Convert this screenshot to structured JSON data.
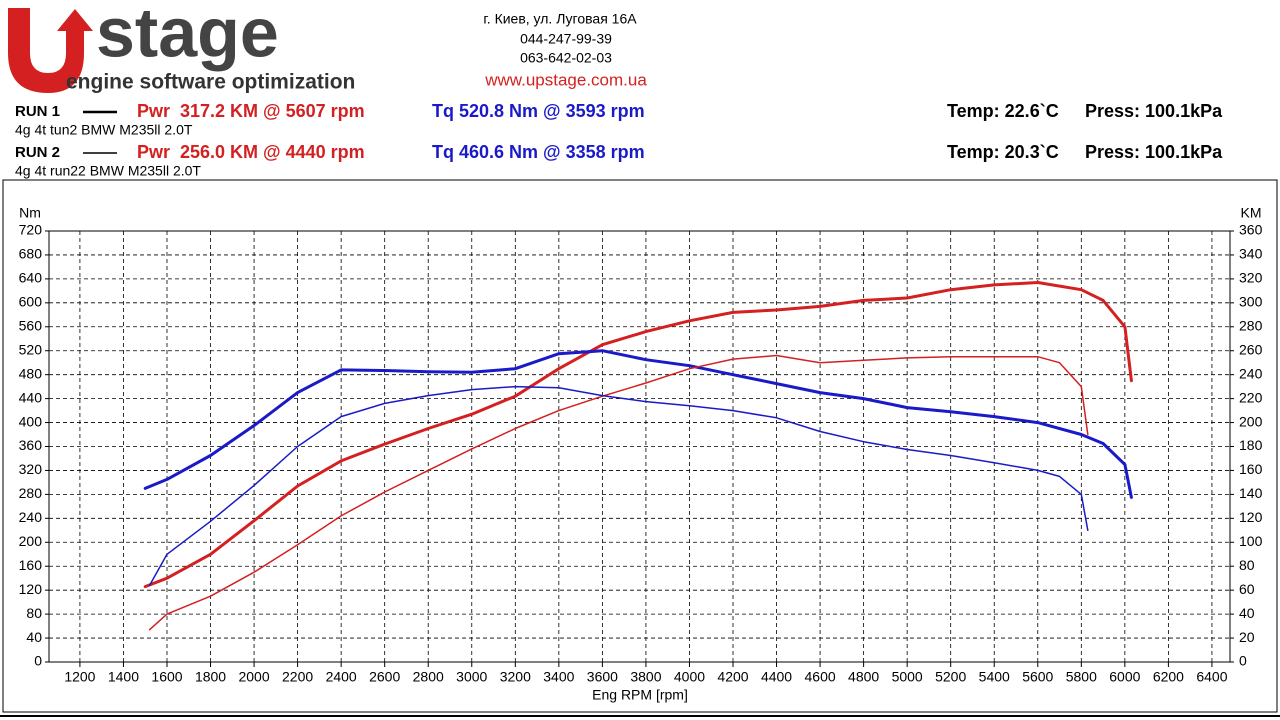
{
  "header": {
    "logo_word": "stage",
    "logo_tagline": "engine software optimization",
    "address": "г. Киев, ул. Луговая 16А",
    "phone1": "044-247-99-39",
    "phone2": "063-642-02-03",
    "website": "www.upstage.com.ua",
    "runs": [
      {
        "label": "RUN 1",
        "description": "4g 4t tun2 BMW M235ll 2.0T",
        "power": "Pwr  317.2 KM @ 5607 rpm",
        "torque": "Tq 520.8 Nm @ 3593 rpm",
        "temp": "Temp: 22.6`C",
        "press": "Press: 100.1kPa"
      },
      {
        "label": "RUN 2",
        "description": "4g 4t run22 BMW M235ll 2.0T",
        "power": "Pwr  256.0 KM @ 4440 rpm",
        "torque": "Tq 460.6 Nm @ 3358 rpm",
        "temp": "Temp: 20.3`C",
        "press": "Press: 100.1kPa"
      }
    ]
  },
  "chart_data": {
    "type": "line",
    "x_label": "Eng RPM [rpm]",
    "y_label": "Nm",
    "y2_label": "KM",
    "xlim": [
      1058,
      6483
    ],
    "xticks": [
      1200,
      1400,
      1600,
      1800,
      2000,
      2200,
      2400,
      2600,
      2800,
      3000,
      3200,
      3400,
      3600,
      3800,
      4000,
      4200,
      4400,
      4600,
      4800,
      5000,
      5200,
      5400,
      5600,
      5800,
      6000,
      6200,
      6400
    ],
    "ylim": [
      0,
      720
    ],
    "yticks": [
      0,
      40,
      80,
      120,
      160,
      200,
      240,
      280,
      320,
      360,
      400,
      440,
      480,
      520,
      560,
      600,
      640,
      680,
      720
    ],
    "y2lim": [
      0,
      360
    ],
    "y2ticks": [
      0,
      20,
      40,
      60,
      80,
      100,
      120,
      140,
      160,
      180,
      200,
      220,
      240,
      260,
      280,
      300,
      320,
      340,
      360
    ],
    "grid": true,
    "series": [
      {
        "color": "#d42020",
        "axis": "y2",
        "line_width": 3,
        "x": [
          1500,
          1600,
          1800,
          2000,
          2200,
          2400,
          2600,
          2800,
          3000,
          3200,
          3400,
          3600,
          3800,
          4000,
          4200,
          4400,
          4600,
          4800,
          5000,
          5200,
          5400,
          5600,
          5800,
          5900,
          6000,
          6030
        ],
        "values": [
          63,
          70,
          90,
          118,
          147,
          168,
          182,
          195,
          207,
          222,
          245,
          265,
          276,
          285,
          292,
          294,
          297,
          302,
          304,
          311,
          315,
          317,
          311,
          302,
          280,
          235
        ]
      },
      {
        "color": "#1a1ac8",
        "axis": "y",
        "line_width": 3,
        "x": [
          1500,
          1600,
          1800,
          2000,
          2200,
          2400,
          2600,
          2800,
          3000,
          3200,
          3400,
          3600,
          3800,
          4000,
          4200,
          4400,
          4600,
          4800,
          5000,
          5200,
          5400,
          5600,
          5800,
          5900,
          6000,
          6030
        ],
        "values": [
          290,
          305,
          345,
          395,
          450,
          488,
          487,
          485,
          484,
          490,
          515,
          520,
          505,
          495,
          480,
          465,
          450,
          440,
          425,
          418,
          410,
          400,
          380,
          365,
          330,
          275
        ]
      },
      {
        "color": "#d42020",
        "axis": "y2",
        "line_width": 1.5,
        "x": [
          1520,
          1600,
          1800,
          2000,
          2200,
          2400,
          2600,
          2800,
          3000,
          3200,
          3400,
          3600,
          3800,
          4000,
          4200,
          4400,
          4600,
          4800,
          5000,
          5200,
          5400,
          5600,
          5700,
          5800,
          5830
        ],
        "values": [
          27,
          40,
          55,
          75,
          98,
          122,
          142,
          160,
          178,
          195,
          210,
          222,
          233,
          245,
          253,
          256,
          250,
          252,
          254,
          255,
          255,
          255,
          250,
          230,
          190
        ]
      },
      {
        "color": "#1a1ac8",
        "axis": "y",
        "line_width": 1.5,
        "x": [
          1520,
          1600,
          1800,
          2000,
          2200,
          2400,
          2600,
          2800,
          3000,
          3200,
          3400,
          3600,
          3800,
          4000,
          4200,
          4400,
          4600,
          4800,
          5000,
          5200,
          5400,
          5600,
          5700,
          5800,
          5830
        ],
        "values": [
          128,
          180,
          235,
          295,
          360,
          410,
          432,
          445,
          455,
          460,
          458,
          445,
          435,
          428,
          420,
          408,
          385,
          368,
          355,
          345,
          333,
          320,
          310,
          280,
          220
        ]
      }
    ]
  }
}
